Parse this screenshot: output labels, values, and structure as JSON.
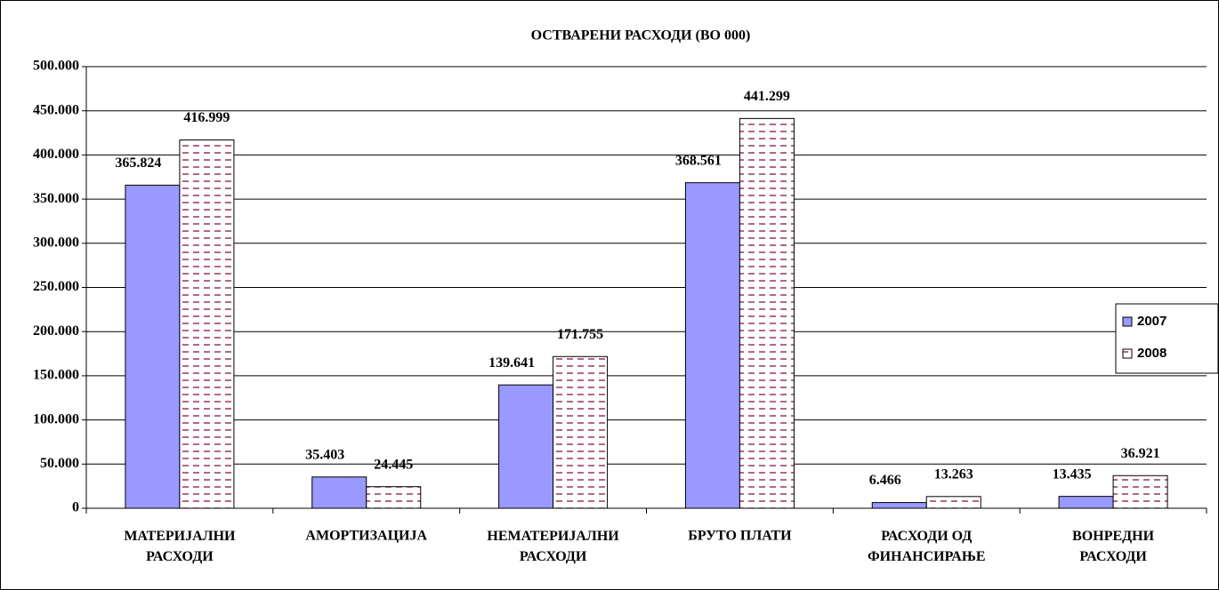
{
  "chart_data": {
    "type": "bar",
    "title": "ОСТВАРЕНИ РАСХОДИ  (ВО 000)",
    "categories": [
      "МАТЕРИЈАЛНИ\nРАСХОДИ",
      "АМОРТИЗАЦИЈА",
      "НЕМАТЕРИЈАЛНИ\nРАСХОДИ",
      "БРУТО ПЛАТИ",
      "РАСХОДИ ОД\nФИНАНСИРАЊЕ",
      "ВОНРЕДНИ\nРАСХОДИ"
    ],
    "series": [
      {
        "name": "2007",
        "color": "#9999ff",
        "values": [
          365824,
          35403,
          139641,
          368561,
          6466,
          13435
        ],
        "value_labels": [
          "365.824",
          "35.403",
          "139.641",
          "368.561",
          "6.466",
          "13.435"
        ]
      },
      {
        "name": "2008",
        "color": "#993366",
        "pattern": "dashed",
        "values": [
          416999,
          24445,
          171755,
          441299,
          13263,
          36921
        ],
        "value_labels": [
          "416.999",
          "24.445",
          "171.755",
          "441.299",
          "13.263",
          "36.921"
        ]
      }
    ],
    "ylim": [
      0,
      500000
    ],
    "yticks": [
      0,
      {
        "value": 50000,
        "label": "50.000"
      },
      {
        "value": 100000,
        "label": "100.000"
      },
      {
        "value": 150000,
        "label": "150.000"
      },
      {
        "value": 200000,
        "label": "200.000"
      },
      {
        "value": 250000,
        "label": "250.000"
      },
      {
        "value": 300000,
        "label": "300.000"
      },
      {
        "value": 350000,
        "label": "350.000"
      },
      {
        "value": 400000,
        "label": "400.000"
      },
      {
        "value": 450000,
        "label": "450.000"
      },
      {
        "value": 500000,
        "label": "500.000"
      }
    ],
    "grid": true,
    "legend": "right"
  }
}
